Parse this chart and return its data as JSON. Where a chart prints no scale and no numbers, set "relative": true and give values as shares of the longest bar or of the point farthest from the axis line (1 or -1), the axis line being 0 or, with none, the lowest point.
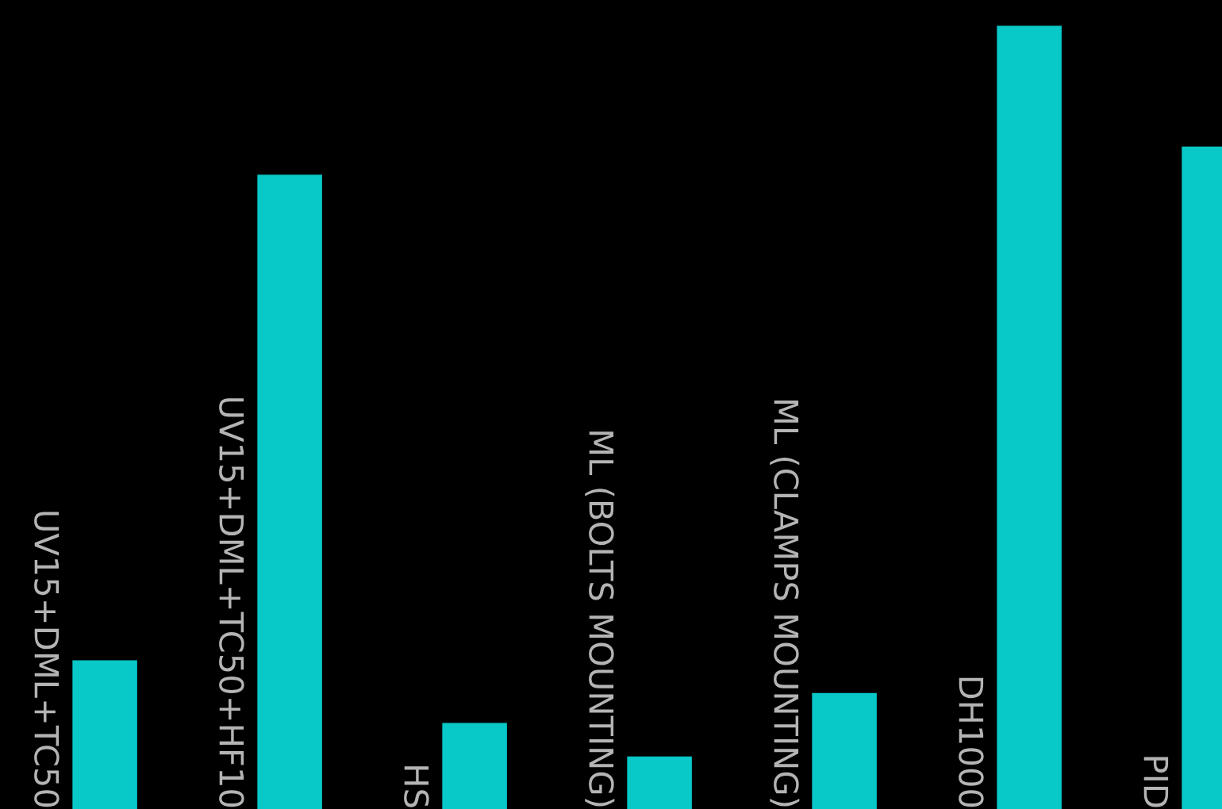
{
  "chart_data": {
    "type": "bar",
    "relative": true,
    "categories": [
      "UV15+DML+TC50",
      "UV15+DML+TC50+HF10",
      "HS",
      "ML (BOLTS MOUNTING)",
      "ML (CLAMPS MOUNTING)",
      "DH1000",
      "PID"
    ],
    "values": [
      0.19,
      0.81,
      0.11,
      0.067,
      0.148,
      1,
      0.846
    ],
    "color": "#08c8c8"
  }
}
